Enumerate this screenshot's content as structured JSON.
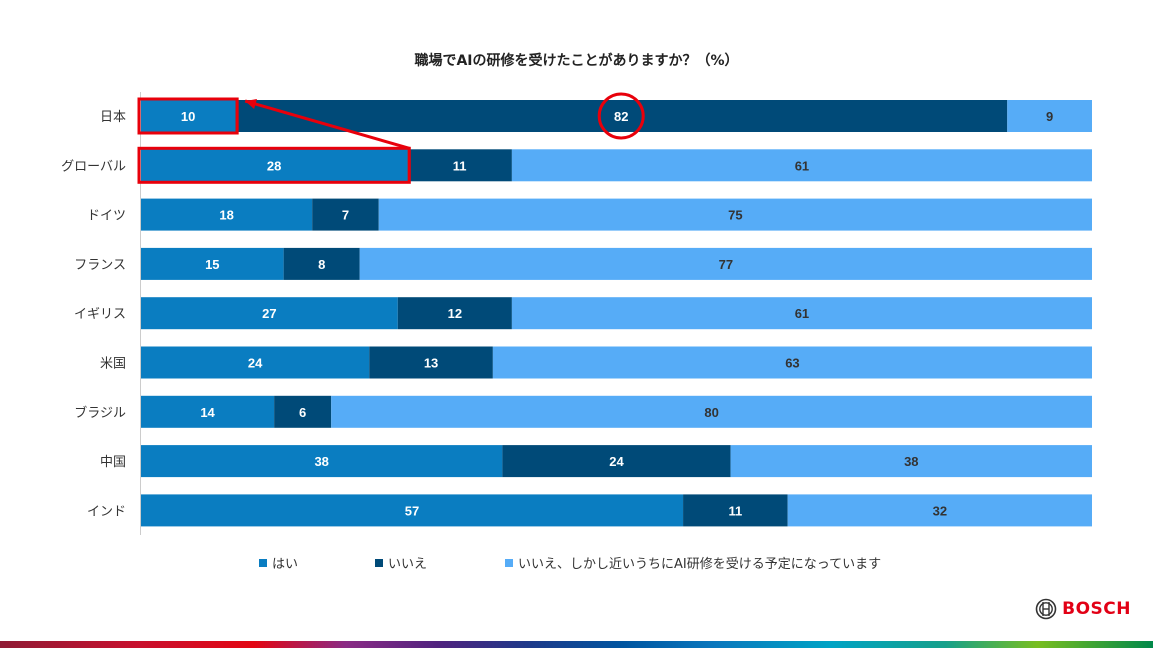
{
  "colors": {
    "yes": "#0a7dc1",
    "no": "#004a78",
    "planned": "#56acf7",
    "highlight": "#e8000b",
    "label_light": "#ffffff",
    "label_dark": "#333333"
  },
  "chart_data": {
    "type": "bar",
    "orientation": "horizontal",
    "stacked": true,
    "stack_mode": "percent",
    "title": "職場でAIの研修を受けたことがありますか？（%）",
    "categories": [
      "日本",
      "グローバル",
      "ドイツ",
      "フランス",
      "イギリス",
      "米国",
      "ブラジル",
      "中国",
      "インド"
    ],
    "series": [
      {
        "name": "はい",
        "values": [
          10,
          28,
          18,
          15,
          27,
          24,
          14,
          38,
          57
        ]
      },
      {
        "name": "いいえ",
        "values": [
          82,
          11,
          7,
          8,
          12,
          13,
          6,
          24,
          11
        ]
      },
      {
        "name": "いいえ、しかし近いうちにAI研修を受ける予定になっています",
        "values": [
          9,
          61,
          75,
          77,
          61,
          63,
          80,
          38,
          32
        ]
      }
    ],
    "xlim": [
      0,
      100
    ],
    "grid": false,
    "legend_position": "bottom",
    "annotations": [
      {
        "type": "box",
        "category": "日本",
        "series": "はい"
      },
      {
        "type": "box",
        "category": "グローバル",
        "series": "はい"
      },
      {
        "type": "circle",
        "category": "日本",
        "series": "いいえ"
      },
      {
        "type": "arrow",
        "from_category": "グローバル",
        "to_category": "日本"
      }
    ]
  },
  "logo": {
    "text": "BOSCH"
  }
}
